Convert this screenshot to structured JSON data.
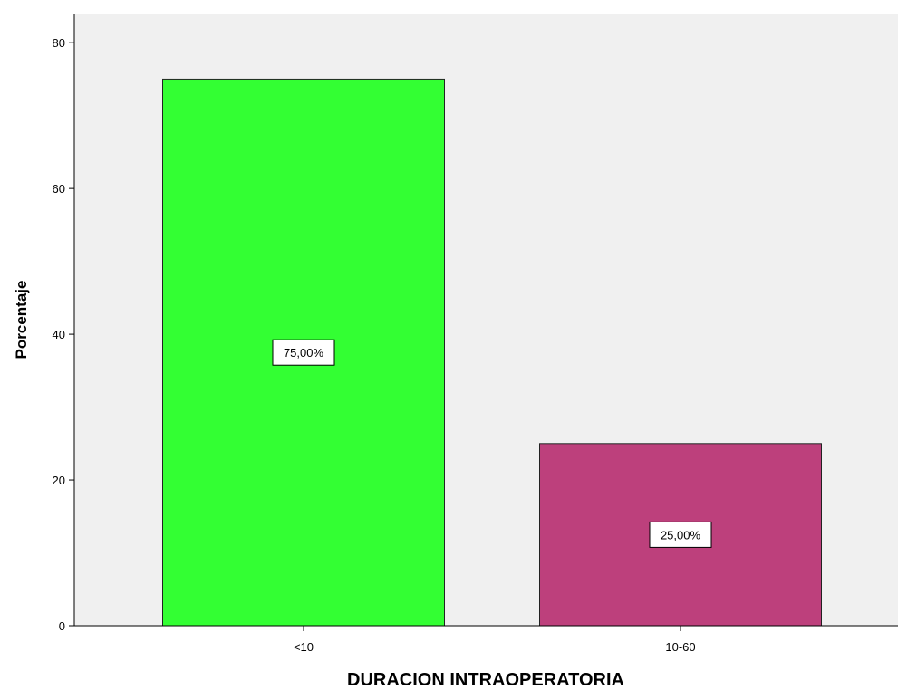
{
  "chart_data": {
    "type": "bar",
    "categories": [
      "<10",
      "10-60"
    ],
    "values": [
      75,
      25
    ],
    "data_labels": [
      "75,00%",
      "25,00%"
    ],
    "bar_colors": [
      "#33ff33",
      "#bd407c"
    ],
    "xlabel": "DURACION INTRAOPERATORIA",
    "ylabel": "Porcentaje",
    "ylim": [
      0,
      84
    ],
    "yticks": [
      0,
      20,
      40,
      60,
      80
    ],
    "ytick_labels": [
      "0",
      "20",
      "40",
      "60",
      "80"
    ],
    "grid": false,
    "plot_background": "#f0f0f0"
  }
}
